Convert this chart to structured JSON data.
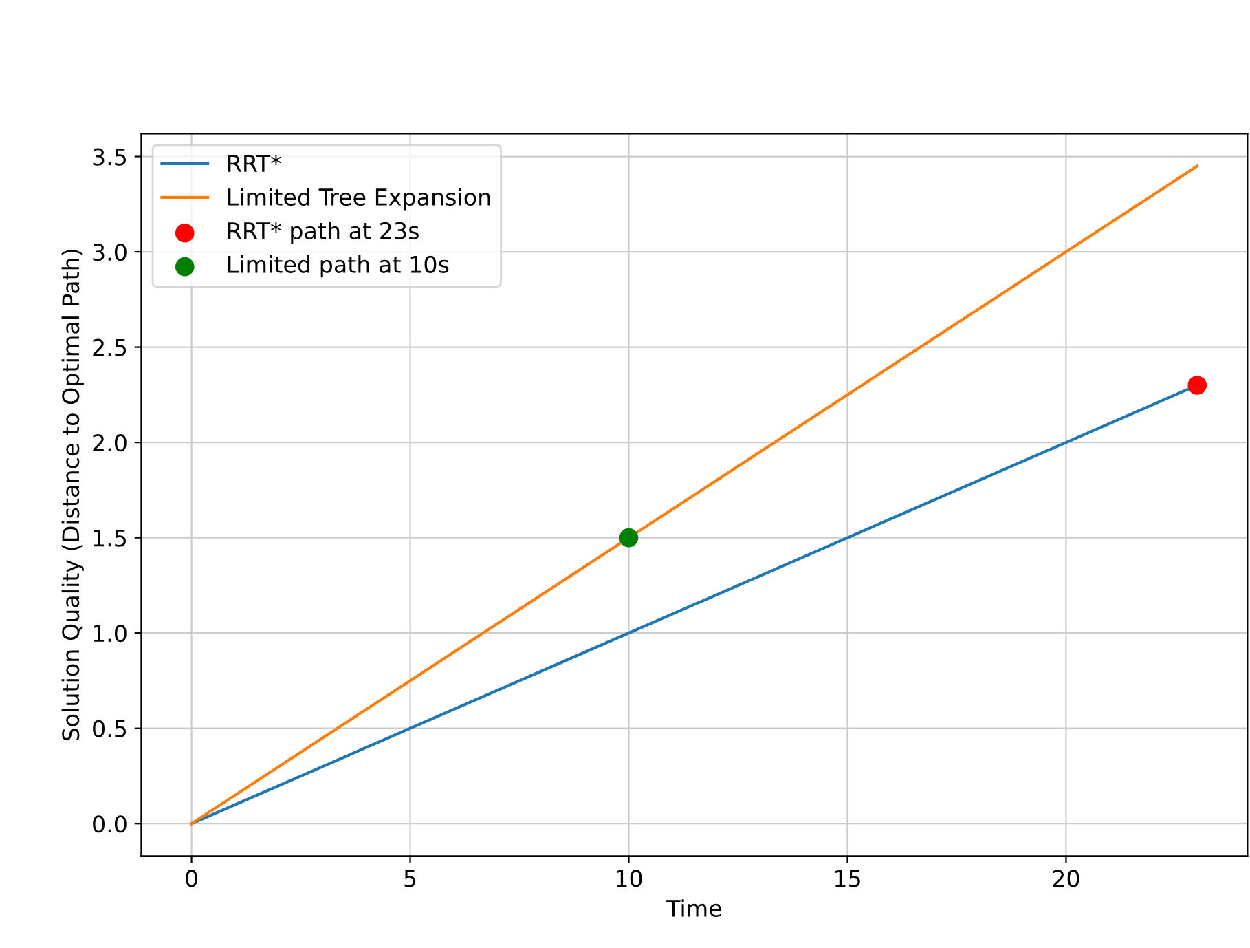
{
  "chart_data": {
    "type": "line",
    "xlabel": "Time",
    "ylabel": "Solution Quality (Distance to Optimal Path)",
    "series": [
      {
        "name": "RRT*",
        "color": "#1f77b4",
        "x": [
          0,
          23
        ],
        "values": [
          0,
          2.3
        ]
      },
      {
        "name": "Limited Tree Expansion",
        "color": "#ff7f0e",
        "x": [
          0,
          23
        ],
        "values": [
          0,
          3.45
        ]
      },
      {
        "name": "RRT* path at 23s",
        "type": "scatter",
        "color": "#ff0000",
        "x": [
          23
        ],
        "values": [
          2.3
        ],
        "marker": "circle"
      },
      {
        "name": "Limited path at 10s",
        "type": "scatter",
        "color": "#008000",
        "x": [
          10
        ],
        "values": [
          1.5
        ],
        "marker": "circle"
      }
    ],
    "xlim": [
      -1.15,
      24.15
    ],
    "ylim": [
      -0.17,
      3.62
    ],
    "xticks": [
      0,
      5,
      10,
      15,
      20
    ],
    "yticks": [
      {
        "value": 0,
        "label": "0.0"
      },
      {
        "value": 0.5,
        "label": "0.5"
      },
      {
        "value": 1,
        "label": "1.0"
      },
      {
        "value": 1.5,
        "label": "1.5"
      },
      {
        "value": 2,
        "label": "2.0"
      },
      {
        "value": 2.5,
        "label": "2.5"
      },
      {
        "value": 3,
        "label": "3.0"
      },
      {
        "value": 3.5,
        "label": "3.5"
      }
    ],
    "grid": true,
    "legend": "top left"
  }
}
